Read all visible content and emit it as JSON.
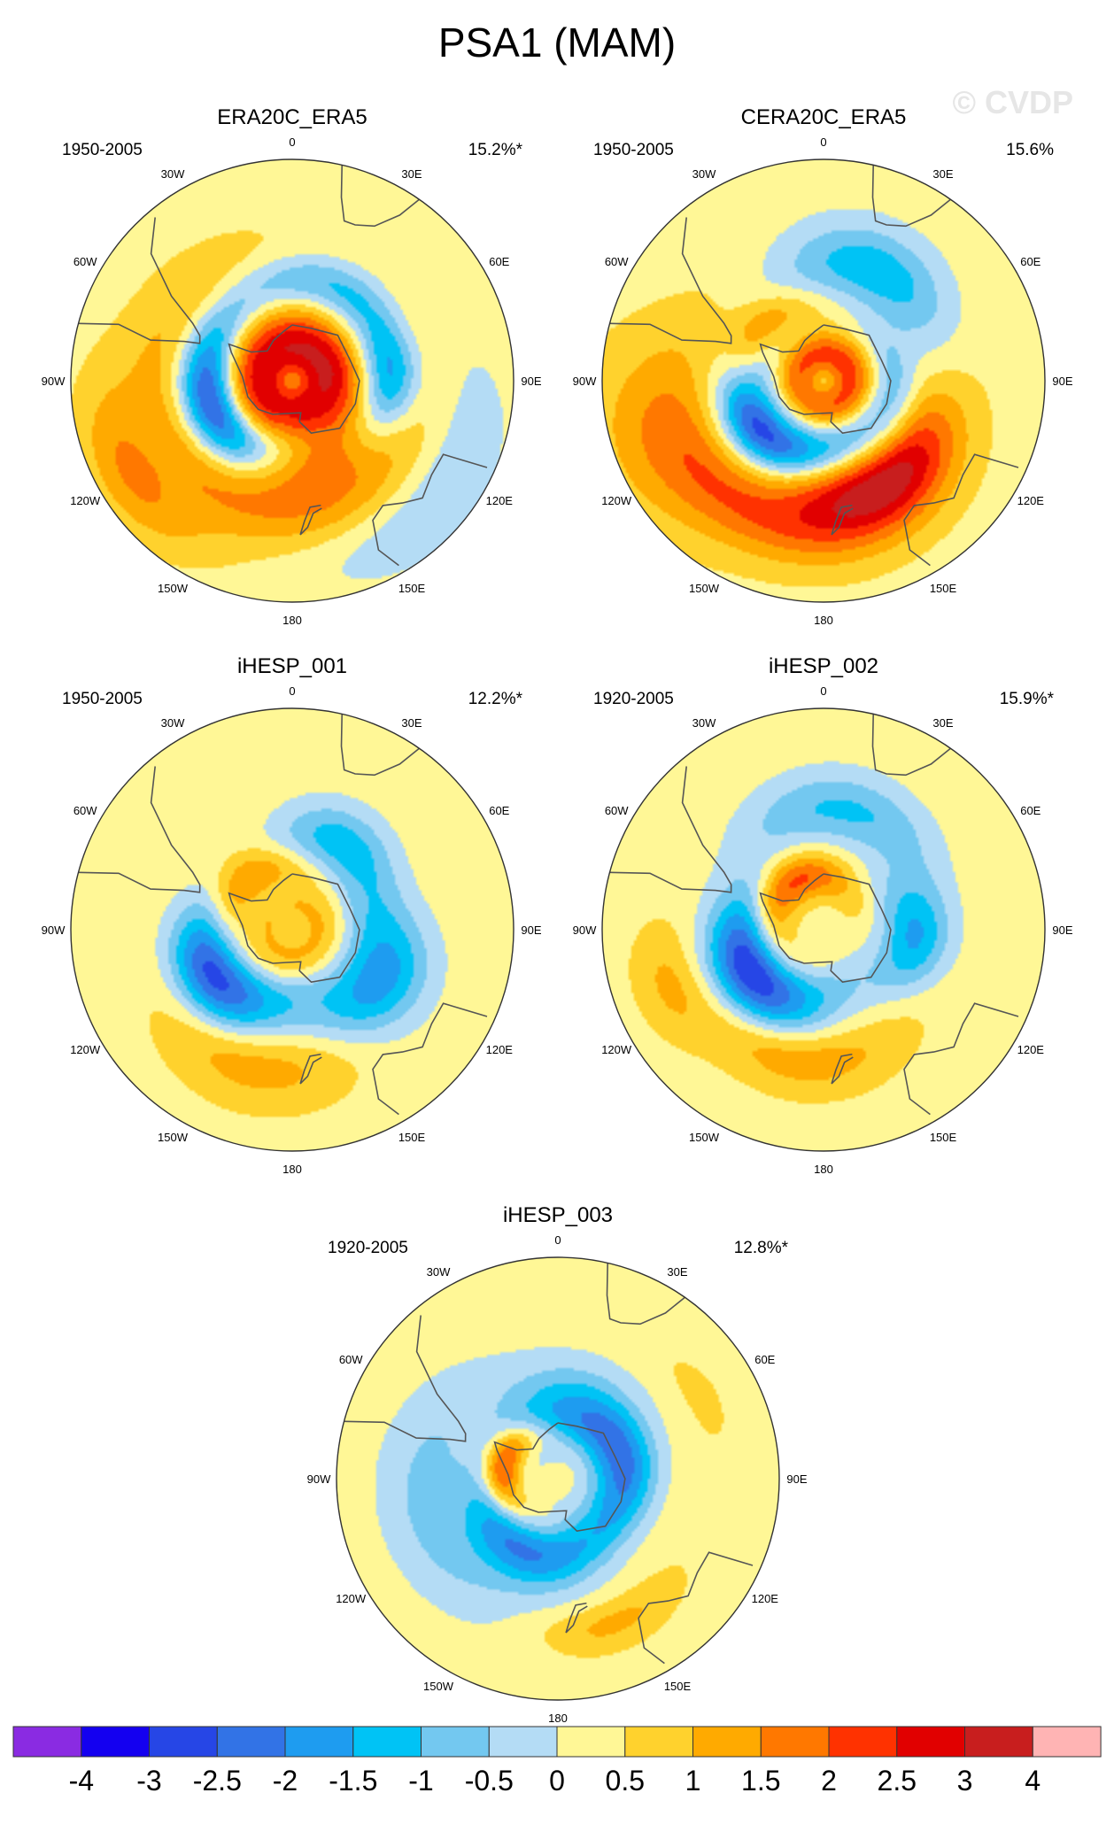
{
  "title": "PSA1 (MAM)",
  "watermark": "© CVDP",
  "lon_labels": [
    "0",
    "30E",
    "60E",
    "90E",
    "120E",
    "150E",
    "180",
    "150W",
    "120W",
    "90W",
    "60W",
    "30W"
  ],
  "colors": {
    "land_line": "#555555",
    "scale": [
      "#8a2be2",
      "#1400f0",
      "#2646e6",
      "#3273e6",
      "#1e9cf0",
      "#00c3f5",
      "#73c8f0",
      "#b4dcf5",
      "#fff796",
      "#ffd22d",
      "#ffaa00",
      "#ff7800",
      "#ff3200",
      "#e10000",
      "#c81e1e",
      "#ffb4b4"
    ]
  },
  "chart_data": {
    "type": "heatmap",
    "projection": "south polar stereographic",
    "colorbar": {
      "levels": [
        "-4",
        "-3",
        "-2.5",
        "-2",
        "-1.5",
        "-1",
        "-0.5",
        "0",
        "0.5",
        "1",
        "1.5",
        "2",
        "2.5",
        "3",
        "4"
      ]
    },
    "panels": [
      {
        "title": "ERA20C_ERA5",
        "period": "1950-2005",
        "pct": "15.2%*",
        "features": [
          {
            "lon": 260,
            "lat": -62,
            "amp": -3.9,
            "lonw": 22,
            "latw": 8
          },
          {
            "lon": 30,
            "lat": -54,
            "amp": -1.6,
            "lonw": 30,
            "latw": 6
          },
          {
            "lon": 90,
            "lat": -56,
            "amp": -1.4,
            "lonw": 12,
            "latw": 7
          },
          {
            "lon": 10,
            "lat": -78,
            "amp": 2.8,
            "lonw": 55,
            "latw": 9
          },
          {
            "lon": 290,
            "lat": -67,
            "amp": 1.6,
            "lonw": 20,
            "latw": 6
          },
          {
            "lon": 215,
            "lat": -45,
            "amp": 1.3,
            "lonw": 60,
            "latw": 9
          },
          {
            "lon": 165,
            "lat": -62,
            "amp": 1.4,
            "lonw": 18,
            "latw": 9
          },
          {
            "lon": 240,
            "lat": -28,
            "amp": 1.1,
            "lonw": 18,
            "latw": 6
          },
          {
            "lon": 130,
            "lat": -30,
            "amp": -0.8,
            "lonw": 30,
            "latw": 8
          }
        ]
      },
      {
        "title": "CERA20C_ERA5",
        "period": "1950-2005",
        "pct": "15.6%",
        "features": [
          {
            "lon": 235,
            "lat": -62,
            "amp": -3.4,
            "lonw": 20,
            "latw": 7
          },
          {
            "lon": 25,
            "lat": -48,
            "amp": -1.7,
            "lonw": 22,
            "latw": 9
          },
          {
            "lon": 100,
            "lat": -65,
            "amp": -1.1,
            "lonw": 18,
            "latw": 6
          },
          {
            "lon": 150,
            "lat": -50,
            "amp": 2.5,
            "lonw": 22,
            "latw": 8
          },
          {
            "lon": 195,
            "lat": -40,
            "amp": 1.6,
            "lonw": 40,
            "latw": 8
          },
          {
            "lon": 300,
            "lat": -62,
            "amp": 1.8,
            "lonw": 16,
            "latw": 6
          },
          {
            "lon": 250,
            "lat": -30,
            "amp": 1.0,
            "lonw": 20,
            "latw": 10
          },
          {
            "lon": 45,
            "lat": -80,
            "amp": 2.0,
            "lonw": 40,
            "latw": 6
          }
        ]
      },
      {
        "title": "iHESP_001",
        "period": "1950-2005",
        "pct": "12.2%*",
        "features": [
          {
            "lon": 240,
            "lat": -58,
            "amp": -3.1,
            "lonw": 18,
            "latw": 9
          },
          {
            "lon": 30,
            "lat": -55,
            "amp": -1.6,
            "lonw": 16,
            "latw": 8
          },
          {
            "lon": 120,
            "lat": -55,
            "amp": -2.2,
            "lonw": 18,
            "latw": 10
          },
          {
            "lon": 310,
            "lat": -66,
            "amp": 1.7,
            "lonw": 16,
            "latw": 6
          },
          {
            "lon": 200,
            "lat": -42,
            "amp": 1.0,
            "lonw": 26,
            "latw": 8
          },
          {
            "lon": 150,
            "lat": -80,
            "amp": 0.9,
            "lonw": 40,
            "latw": 6
          }
        ]
      },
      {
        "title": "iHESP_002",
        "period": "1920-2005",
        "pct": "15.9%*",
        "features": [
          {
            "lon": 240,
            "lat": -60,
            "amp": -3.3,
            "lonw": 20,
            "latw": 9
          },
          {
            "lon": 10,
            "lat": -48,
            "amp": -1.4,
            "lonw": 25,
            "latw": 8
          },
          {
            "lon": 95,
            "lat": -58,
            "amp": -1.8,
            "lonw": 14,
            "latw": 8
          },
          {
            "lon": 320,
            "lat": -70,
            "amp": 2.4,
            "lonw": 16,
            "latw": 6
          },
          {
            "lon": 195,
            "lat": -45,
            "amp": 1.1,
            "lonw": 26,
            "latw": 7
          },
          {
            "lon": 250,
            "lat": -35,
            "amp": 0.8,
            "lonw": 12,
            "latw": 6
          }
        ]
      },
      {
        "title": "iHESP_003",
        "period": "1920-2005",
        "pct": "12.8%*",
        "features": [
          {
            "lon": 205,
            "lat": -62,
            "amp": -2.2,
            "lonw": 22,
            "latw": 7
          },
          {
            "lon": 20,
            "lat": -65,
            "amp": -1.8,
            "lonw": 24,
            "latw": 10
          },
          {
            "lon": 85,
            "lat": -65,
            "amp": -1.4,
            "lonw": 18,
            "latw": 7
          },
          {
            "lon": 285,
            "lat": -70,
            "amp": 2.9,
            "lonw": 12,
            "latw": 5
          },
          {
            "lon": 255,
            "lat": -45,
            "amp": -1.0,
            "lonw": 35,
            "latw": 10
          },
          {
            "lon": 160,
            "lat": -38,
            "amp": 0.9,
            "lonw": 16,
            "latw": 5
          },
          {
            "lon": 60,
            "lat": -35,
            "amp": 0.6,
            "lonw": 8,
            "latw": 3
          }
        ]
      }
    ]
  }
}
